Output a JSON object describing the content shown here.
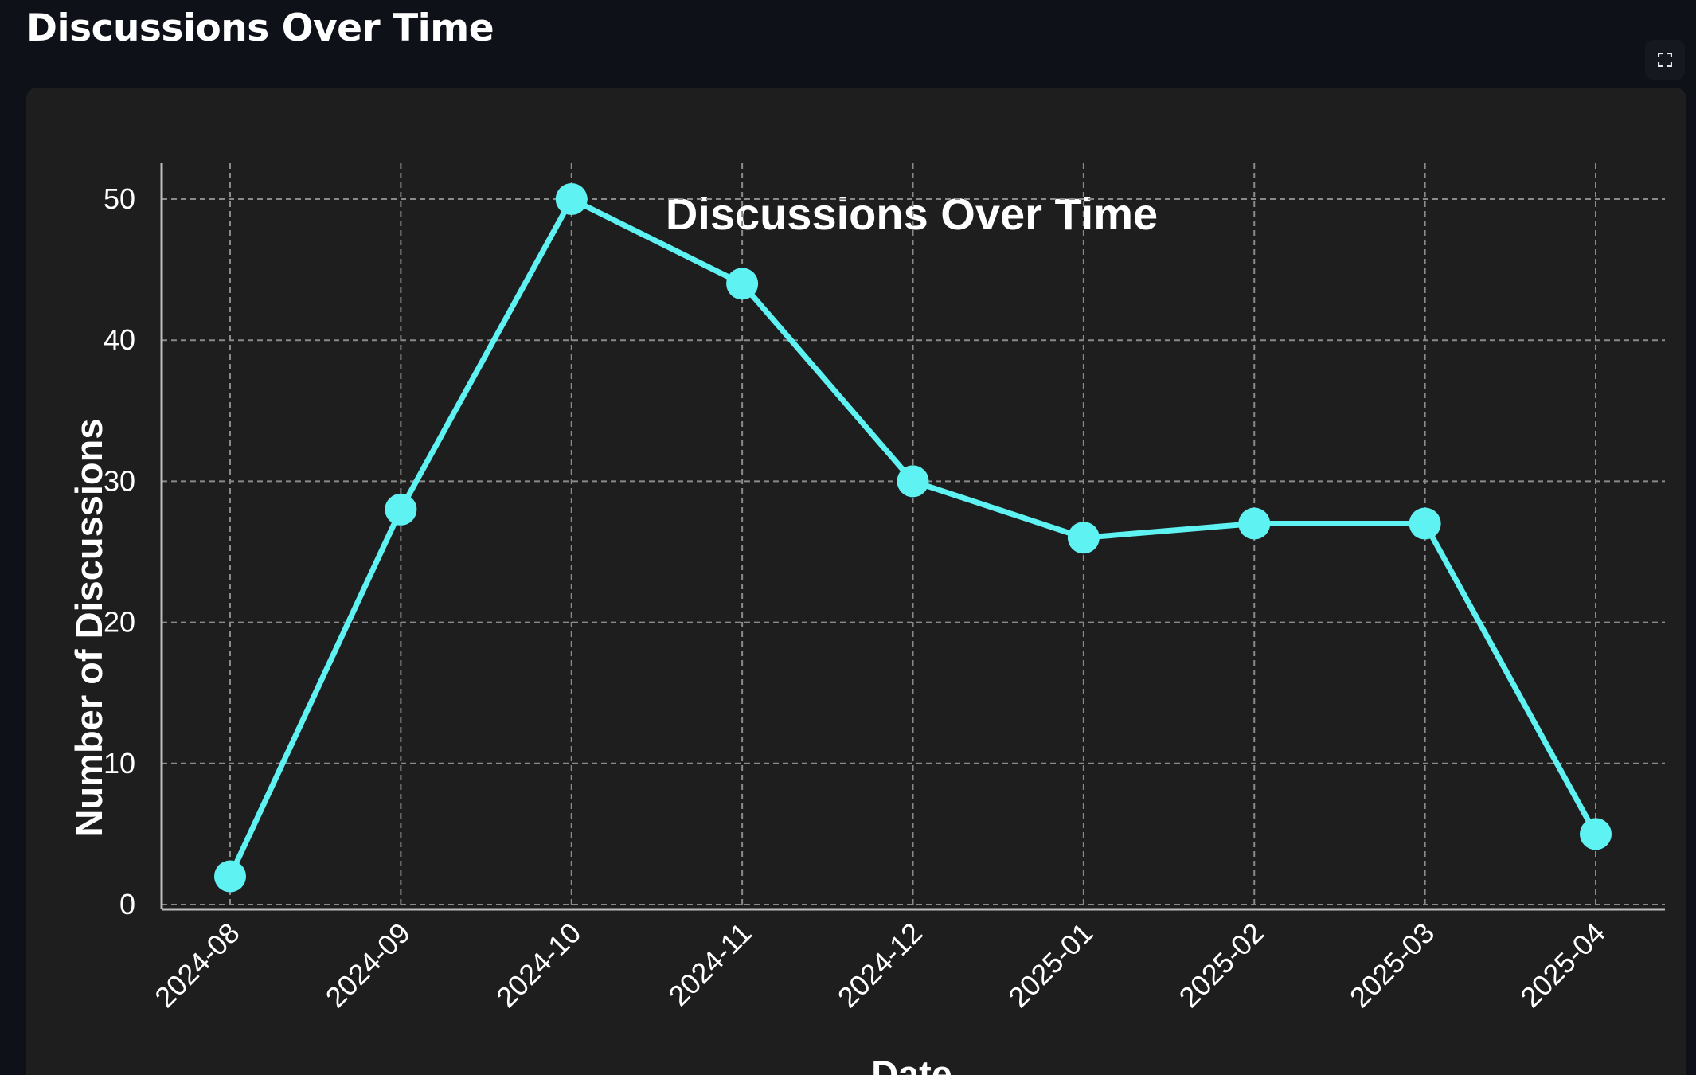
{
  "page": {
    "header_title": "Discussions Over Time"
  },
  "toolbar": {
    "fullscreen_icon": "expand-icon"
  },
  "colors": {
    "page_background": "#0e1117",
    "chart_background": "#1e1e1e",
    "series_line": "#5ff2f2",
    "grid": "#8a8a8a",
    "text": "#ffffff"
  },
  "chart_data": {
    "type": "line",
    "title": "Discussions Over Time",
    "xlabel": "Date",
    "ylabel": "Number of Discussions",
    "categories": [
      "2024-08",
      "2024-09",
      "2024-10",
      "2024-11",
      "2024-12",
      "2025-01",
      "2025-02",
      "2025-03",
      "2025-04"
    ],
    "series": [
      {
        "values": [
          2,
          28,
          50,
          44,
          30,
          26,
          27,
          27,
          5
        ],
        "color": "#5ff2f2",
        "marker": "circle"
      }
    ],
    "ylim": [
      0,
      52.4
    ],
    "yticks": [
      0,
      10,
      20,
      30,
      40,
      50
    ],
    "grid": true,
    "grid_style": "dashed",
    "x_tick_rotation": 45,
    "legend": "none"
  }
}
